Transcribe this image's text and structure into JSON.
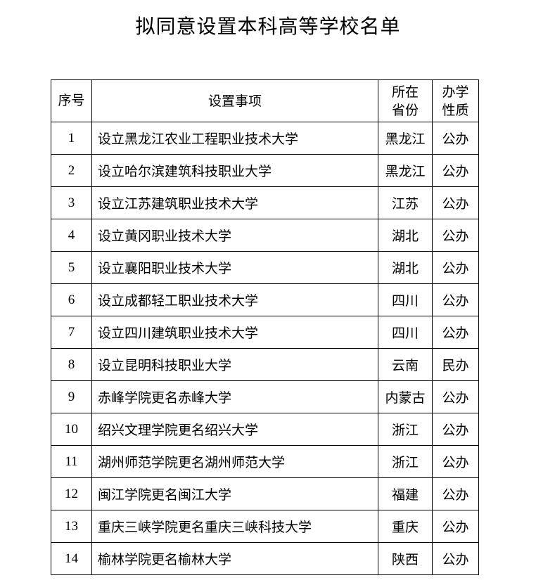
{
  "title": "拟同意设置本科高等学校名单",
  "headers": [
    "序号",
    "设置事项",
    "所在省份",
    "办学性质"
  ],
  "header_lines": {
    "province": [
      "所在",
      "省份"
    ],
    "nature": [
      "办学",
      "性质"
    ]
  },
  "rows": [
    {
      "no": "1",
      "item": "设立黑龙江农业工程职业技术大学",
      "province": "黑龙江",
      "nature": "公办"
    },
    {
      "no": "2",
      "item": "设立哈尔滨建筑科技职业大学",
      "province": "黑龙江",
      "nature": "公办"
    },
    {
      "no": "3",
      "item": "设立江苏建筑职业技术大学",
      "province": "江苏",
      "nature": "公办"
    },
    {
      "no": "4",
      "item": "设立黄冈职业技术大学",
      "province": "湖北",
      "nature": "公办"
    },
    {
      "no": "5",
      "item": "设立襄阳职业技术大学",
      "province": "湖北",
      "nature": "公办"
    },
    {
      "no": "6",
      "item": "设立成都轻工职业技术大学",
      "province": "四川",
      "nature": "公办"
    },
    {
      "no": "7",
      "item": "设立四川建筑职业技术大学",
      "province": "四川",
      "nature": "公办"
    },
    {
      "no": "8",
      "item": "设立昆明科技职业大学",
      "province": "云南",
      "nature": "民办"
    },
    {
      "no": "9",
      "item": "赤峰学院更名赤峰大学",
      "province": "内蒙古",
      "nature": "公办"
    },
    {
      "no": "10",
      "item": "绍兴文理学院更名绍兴大学",
      "province": "浙江",
      "nature": "公办"
    },
    {
      "no": "11",
      "item": "湖州师范学院更名湖州师范大学",
      "province": "浙江",
      "nature": "公办"
    },
    {
      "no": "12",
      "item": "闽江学院更名闽江大学",
      "province": "福建",
      "nature": "公办"
    },
    {
      "no": "13",
      "item": "重庆三峡学院更名重庆三峡科技大学",
      "province": "重庆",
      "nature": "公办"
    },
    {
      "no": "14",
      "item": "榆林学院更名榆林大学",
      "province": "陕西",
      "nature": "公办"
    }
  ]
}
